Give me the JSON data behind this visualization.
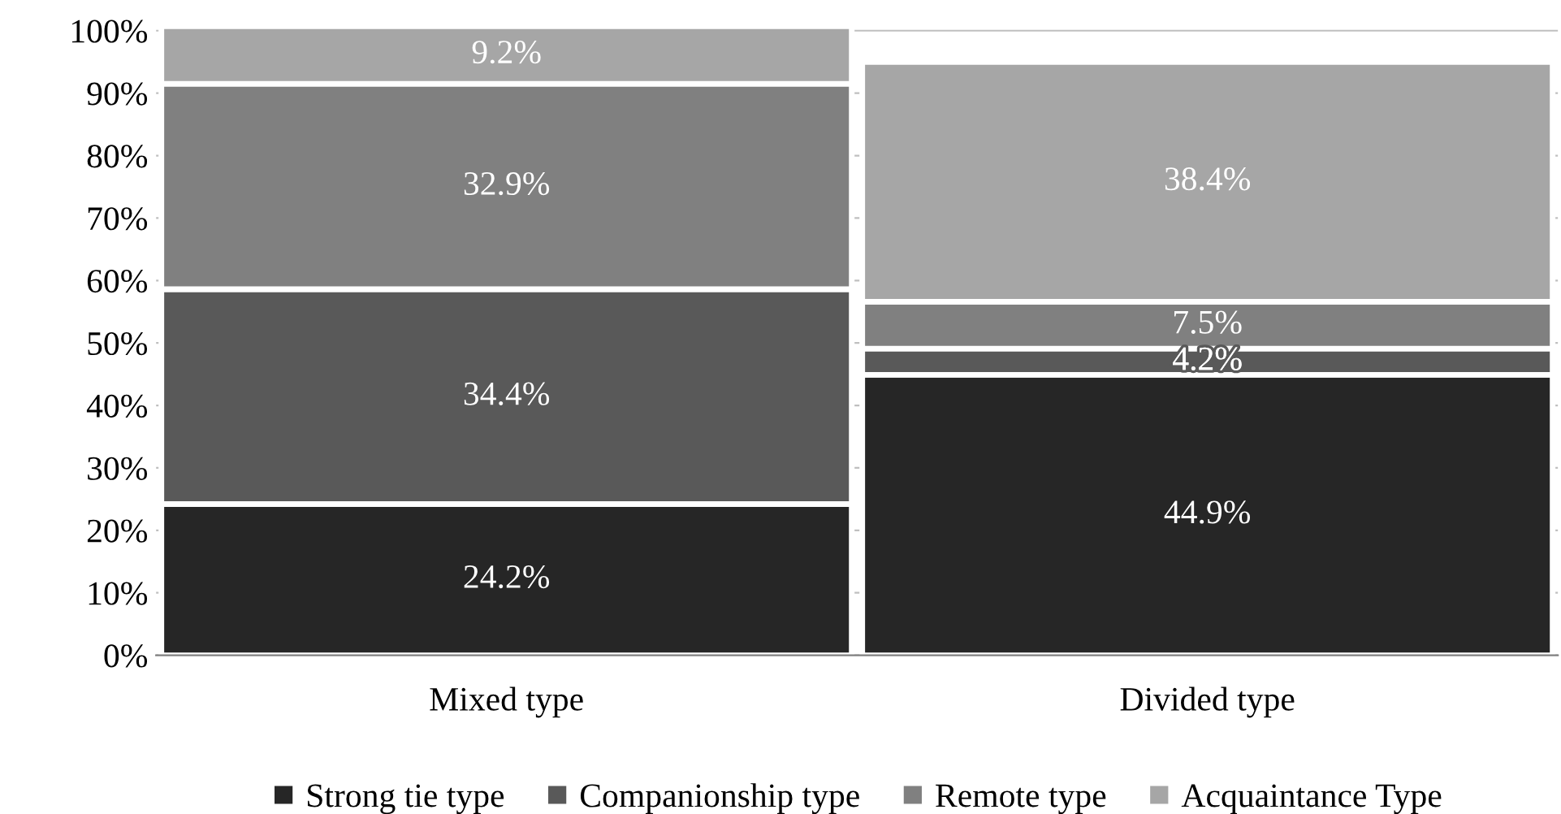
{
  "chart_data": {
    "type": "bar",
    "stacked": true,
    "categories": [
      "Mixed type",
      "Divided type"
    ],
    "series": [
      {
        "name": "Strong tie type",
        "color": "#262626",
        "values": [
          24.2,
          44.9
        ],
        "value_labels": [
          "24.2%",
          "44.9%"
        ]
      },
      {
        "name": "Companionship type",
        "color": "#595959",
        "values": [
          34.4,
          4.2
        ],
        "value_labels": [
          "34.4%",
          "4.2%"
        ]
      },
      {
        "name": "Remote type",
        "color": "#808080",
        "values": [
          32.9,
          7.5
        ],
        "value_labels": [
          "32.9%",
          "7.5%"
        ]
      },
      {
        "name": "Acquaintance Type",
        "color": "#a6a6a6",
        "values": [
          9.2,
          38.4
        ],
        "value_labels": [
          "9.2%",
          "38.4%"
        ]
      }
    ],
    "ylim": [
      0,
      101
    ],
    "yticks": [
      {
        "value": 0,
        "label": "0%"
      },
      {
        "value": 10,
        "label": "10%"
      },
      {
        "value": 20,
        "label": "20%"
      },
      {
        "value": 30,
        "label": "30%"
      },
      {
        "value": 40,
        "label": "40%"
      },
      {
        "value": 50,
        "label": "50%"
      },
      {
        "value": 60,
        "label": "60%"
      },
      {
        "value": 70,
        "label": "70%"
      },
      {
        "value": 80,
        "label": "80%"
      },
      {
        "value": 90,
        "label": "90%"
      },
      {
        "value": 100,
        "label": "100%"
      }
    ],
    "grid": "y",
    "legend": "bottom"
  }
}
